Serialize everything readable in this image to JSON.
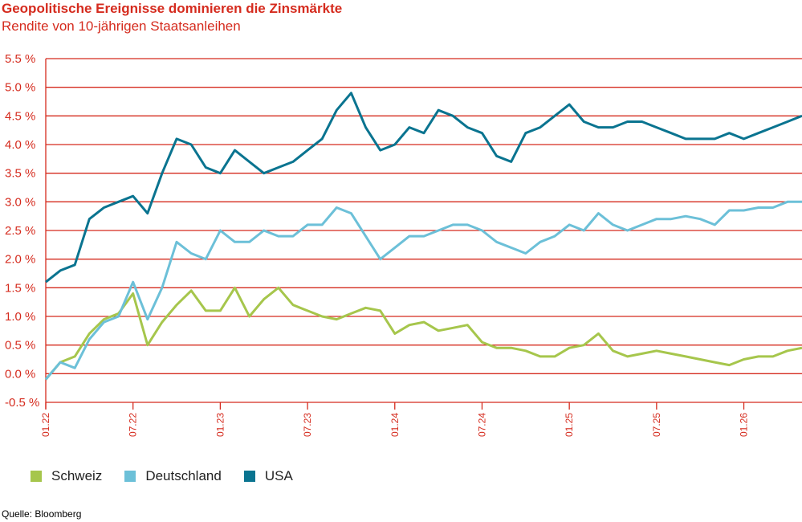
{
  "title": "Geopolitische Ereignisse dominieren die Zinsmärkte",
  "subtitle": "Rendite von 10-jährigen Staatsanleihen",
  "source": "Quelle: Bloomberg",
  "colors": {
    "accent": "#d52b1e",
    "schweiz": "#a6c64c",
    "deutschland": "#6cc0d8",
    "usa": "#0a7490"
  },
  "chart_data": {
    "type": "line",
    "title": "Geopolitische Ereignisse dominieren die Zinsmärkte",
    "subtitle": "Rendite von 10-jährigen Staatsanleihen",
    "ylim": [
      -0.5,
      5.5
    ],
    "yticks": [
      -0.5,
      0.0,
      0.5,
      1.0,
      1.5,
      2.0,
      2.5,
      3.0,
      3.5,
      4.0,
      4.5,
      5.0,
      5.5
    ],
    "ytick_labels": [
      "-0.5 %",
      "0.0 %",
      "0.5 %",
      "1.0 %",
      "1.5 %",
      "2.0 %",
      "2.5 %",
      "3.0 %",
      "3.5 %",
      "4.0 %",
      "4.5 %",
      "5.0 %",
      "5.5 %"
    ],
    "xlim": [
      "2022-01",
      "2026-05"
    ],
    "xticks": [
      "2022-01",
      "2022-07",
      "2023-01",
      "2023-07",
      "2024-01",
      "2024-07",
      "2025-01",
      "2025-07",
      "2026-01"
    ],
    "xtick_labels": [
      "01.22",
      "07.22",
      "01.23",
      "07.23",
      "01.24",
      "07.24",
      "01.25",
      "07.25",
      "01.26"
    ],
    "grid": true,
    "legend": "bottom-left",
    "x": [
      "2022-01",
      "2022-02",
      "2022-03",
      "2022-04",
      "2022-05",
      "2022-06",
      "2022-07",
      "2022-08",
      "2022-09",
      "2022-10",
      "2022-11",
      "2022-12",
      "2023-01",
      "2023-02",
      "2023-03",
      "2023-04",
      "2023-05",
      "2023-06",
      "2023-07",
      "2023-08",
      "2023-09",
      "2023-10",
      "2023-11",
      "2023-12",
      "2024-01",
      "2024-02",
      "2024-03",
      "2024-04",
      "2024-05",
      "2024-06",
      "2024-07",
      "2024-08",
      "2024-09",
      "2024-10",
      "2024-11",
      "2024-12",
      "2025-01",
      "2025-02",
      "2025-03",
      "2025-04",
      "2025-05",
      "2025-06",
      "2025-07",
      "2025-08",
      "2025-09",
      "2025-10",
      "2025-11",
      "2025-12",
      "2026-01",
      "2026-02",
      "2026-03",
      "2026-04",
      "2026-05"
    ],
    "series": [
      {
        "name": "Schweiz",
        "color": "#a6c64c",
        "values": [
          -0.1,
          0.2,
          0.3,
          0.7,
          0.95,
          1.05,
          1.4,
          0.5,
          0.9,
          1.2,
          1.45,
          1.1,
          1.1,
          1.5,
          1.0,
          1.3,
          1.5,
          1.2,
          1.1,
          1.0,
          0.95,
          1.05,
          1.15,
          1.1,
          0.7,
          0.85,
          0.9,
          0.75,
          0.8,
          0.85,
          0.55,
          0.45,
          0.45,
          0.4,
          0.3,
          0.3,
          0.45,
          0.5,
          0.7,
          0.4,
          0.3,
          0.35,
          0.4,
          0.35,
          0.3,
          0.25,
          0.2,
          0.15,
          0.25,
          0.3,
          0.3,
          0.4,
          0.45
        ]
      },
      {
        "name": "Deutschland",
        "color": "#6cc0d8",
        "values": [
          -0.1,
          0.2,
          0.1,
          0.6,
          0.9,
          1.0,
          1.6,
          0.95,
          1.5,
          2.3,
          2.1,
          2.0,
          2.5,
          2.3,
          2.3,
          2.5,
          2.4,
          2.4,
          2.6,
          2.6,
          2.9,
          2.8,
          2.4,
          2.0,
          2.2,
          2.4,
          2.4,
          2.5,
          2.6,
          2.6,
          2.5,
          2.3,
          2.2,
          2.1,
          2.3,
          2.4,
          2.6,
          2.5,
          2.8,
          2.6,
          2.5,
          2.6,
          2.7,
          2.7,
          2.75,
          2.7,
          2.6,
          2.85,
          2.85,
          2.9,
          2.9,
          3.0,
          3.0
        ]
      },
      {
        "name": "USA",
        "color": "#0a7490",
        "values": [
          1.6,
          1.8,
          1.9,
          2.7,
          2.9,
          3.0,
          3.1,
          2.8,
          3.5,
          4.1,
          4.0,
          3.6,
          3.5,
          3.9,
          3.7,
          3.5,
          3.6,
          3.7,
          3.9,
          4.1,
          4.6,
          4.9,
          4.3,
          3.9,
          4.0,
          4.3,
          4.2,
          4.6,
          4.5,
          4.3,
          4.2,
          3.8,
          3.7,
          4.2,
          4.3,
          4.5,
          4.7,
          4.4,
          4.3,
          4.3,
          4.4,
          4.4,
          4.3,
          4.2,
          4.1,
          4.1,
          4.1,
          4.2,
          4.1,
          4.2,
          4.3,
          4.4,
          4.5
        ]
      }
    ]
  }
}
